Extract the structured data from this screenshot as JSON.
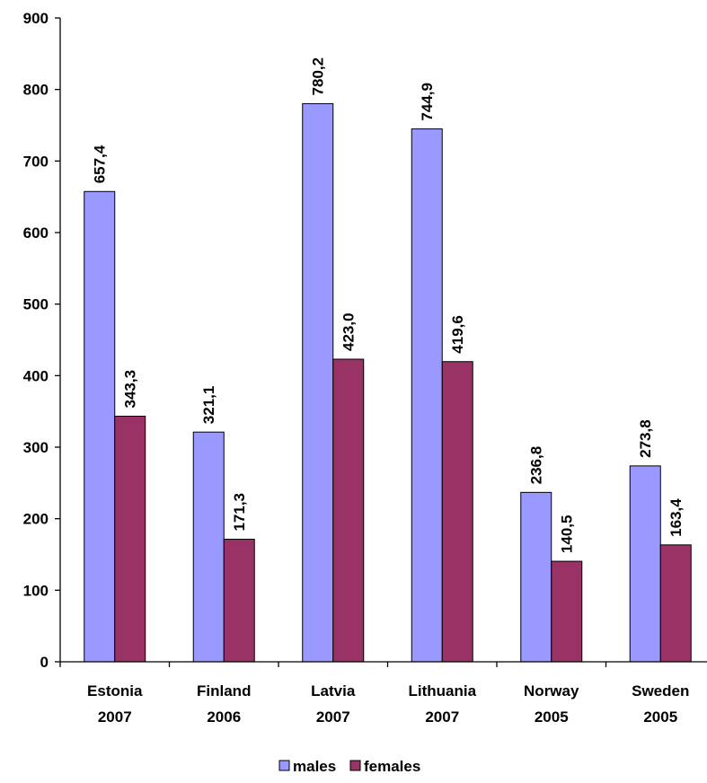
{
  "chart_data": {
    "type": "bar",
    "title": "",
    "xlabel": "",
    "ylabel": "",
    "ylim": [
      0,
      900
    ],
    "yticks": [
      "0",
      "100",
      "200",
      "300",
      "400",
      "500",
      "600",
      "700",
      "800",
      "900"
    ],
    "categories": [
      [
        "Estonia",
        "2007"
      ],
      [
        "Finland",
        "2006"
      ],
      [
        "Latvia",
        "2007"
      ],
      [
        "Lithuania",
        "2007"
      ],
      [
        "Norway",
        "2005"
      ],
      [
        "Sweden",
        "2005"
      ]
    ],
    "series": [
      {
        "name": "males",
        "color": "#9999ff",
        "values": [
          657.4,
          321.1,
          780.2,
          744.9,
          236.8,
          273.8
        ],
        "labels": [
          "657,4",
          "321,1",
          "780,2",
          "744,9",
          "236,8",
          "273,8"
        ]
      },
      {
        "name": "females",
        "color": "#993366",
        "values": [
          343.3,
          171.3,
          423.0,
          419.6,
          140.5,
          163.4
        ],
        "labels": [
          "343,3",
          "171,3",
          "423,0",
          "419,6",
          "140,5",
          "163,4"
        ]
      }
    ],
    "grid": false,
    "legend": "bottom-center"
  }
}
